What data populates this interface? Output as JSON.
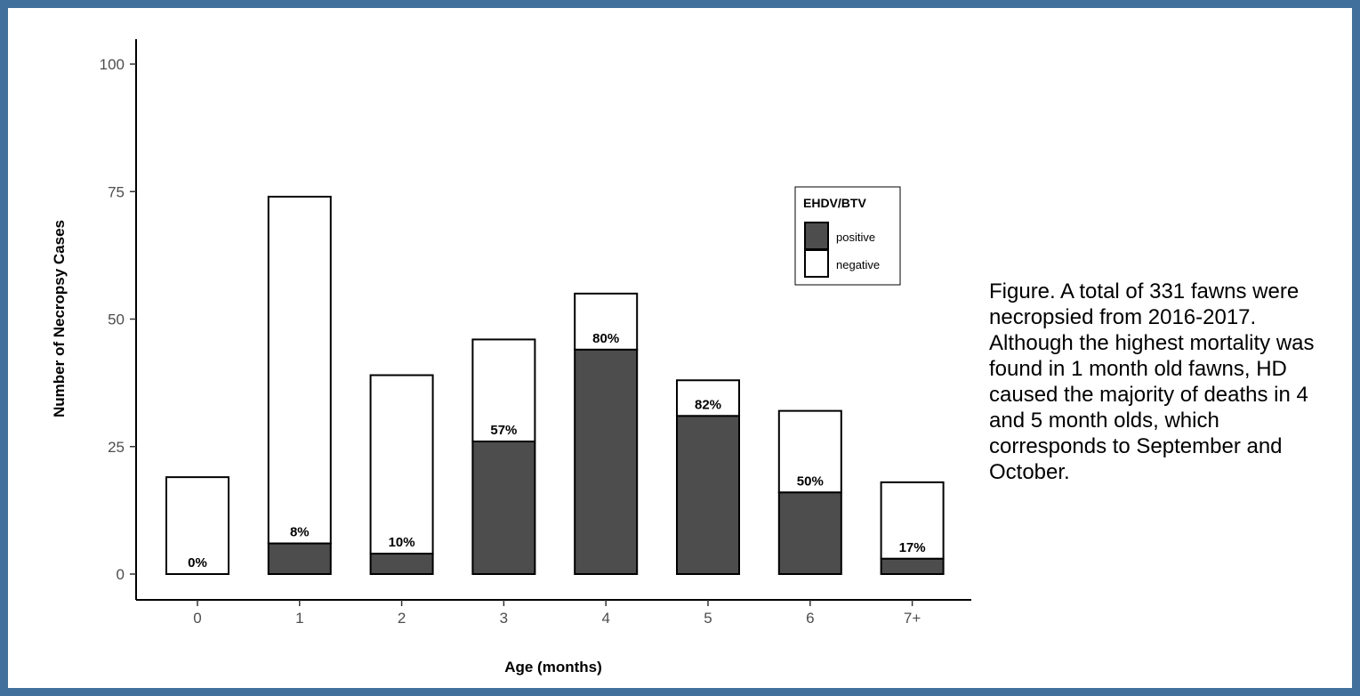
{
  "chart_data": {
    "type": "bar",
    "stacked": true,
    "categories": [
      "0",
      "1",
      "2",
      "3",
      "4",
      "5",
      "6",
      "7+"
    ],
    "series": [
      {
        "name": "positive",
        "color": "#4d4d4d",
        "values": [
          0,
          6,
          4,
          26,
          44,
          31,
          16,
          3
        ]
      },
      {
        "name": "negative",
        "color": "#ffffff",
        "values": [
          19,
          68,
          35,
          20,
          11,
          7,
          16,
          15
        ]
      }
    ],
    "totals": [
      19,
      74,
      39,
      46,
      55,
      38,
      32,
      18
    ],
    "labels": [
      "0%",
      "8%",
      "10%",
      "57%",
      "80%",
      "82%",
      "50%",
      "17%"
    ],
    "title": "",
    "xlabel": "Age (months)",
    "ylabel": "Number of Necropsy Cases",
    "ylim": [
      0,
      105
    ],
    "yticks": [
      "0",
      "25",
      "50",
      "75",
      "100"
    ],
    "ytick_values": [
      0,
      25,
      50,
      75,
      100
    ],
    "legend": {
      "title": "EHDV/BTV",
      "placement": "right",
      "entries": [
        "positive",
        "negative"
      ]
    },
    "grid": false
  },
  "caption": {
    "text": "Figure. A total of 331 fawns were necropsied from 2016-2017. Although the highest mortality was found in 1 month old fawns, HD caused the majority of deaths in 4 and 5 month olds, which corresponds to September and October."
  },
  "colors": {
    "frame": "#40709b",
    "positive": "#4d4d4d",
    "negative": "#ffffff"
  }
}
